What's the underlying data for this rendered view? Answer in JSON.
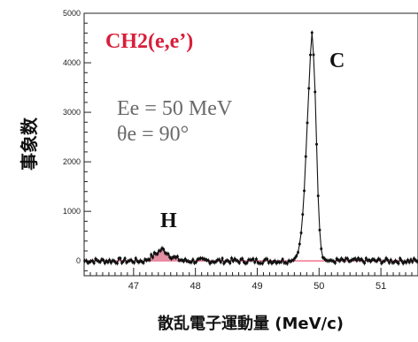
{
  "chart_data": {
    "type": "line",
    "xlabel": "散乱電子運動量 (MeV/c)",
    "ylabel": "事象数",
    "xlim": [
      46.2,
      51.6
    ],
    "ylim": [
      -300,
      5000
    ],
    "x_ticks": [
      "47",
      "48",
      "49",
      "50",
      "51"
    ],
    "y_ticks": [
      "0",
      "1000",
      "2000",
      "3000",
      "4000",
      "5000"
    ],
    "baseline": 0,
    "baseline_color": "#e8476a",
    "line_color": "#111111",
    "h_fill_color": "#e58fa3",
    "grid": false,
    "annotations": {
      "reaction": "CH2(e,e’)",
      "peak_c": "C",
      "peak_h": "H",
      "energy": "Ee = 50 MeV",
      "angle": "θe = 90°"
    },
    "series": [
      {
        "x": [
          49.55,
          49.6,
          49.65,
          49.7,
          49.75,
          49.8,
          49.85,
          49.88,
          49.92,
          49.95,
          49.98,
          50.0,
          50.03,
          50.05,
          50.1,
          50.15
        ],
        "y": [
          0,
          40,
          130,
          420,
          1150,
          2500,
          3900,
          4700,
          4000,
          2800,
          1500,
          800,
          300,
          100,
          20,
          0
        ]
      },
      {
        "x": [
          47.2,
          47.3,
          47.4,
          47.45,
          47.5,
          47.55,
          47.6,
          47.7,
          47.8
        ],
        "y": [
          20,
          90,
          180,
          230,
          210,
          160,
          100,
          40,
          10
        ]
      }
    ]
  }
}
